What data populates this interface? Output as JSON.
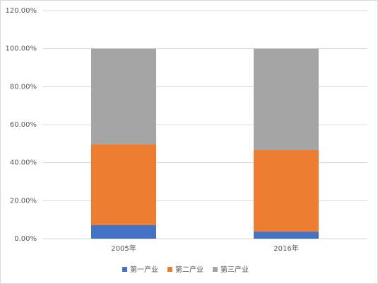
{
  "chart_data": {
    "type": "stacked_bar",
    "categories": [
      "2005年",
      "2016年"
    ],
    "series": [
      {
        "name": "第一产业",
        "color": "#4472c4",
        "values": [
          7.1,
          3.7
        ]
      },
      {
        "name": "第二产业",
        "color": "#ed7d31",
        "values": [
          42.5,
          42.9
        ]
      },
      {
        "name": "第三产业",
        "color": "#a5a5a5",
        "values": [
          50.4,
          53.4
        ]
      }
    ],
    "ylim": [
      0,
      120
    ],
    "yticks": [
      {
        "value": 0,
        "label": "0.00%"
      },
      {
        "value": 20,
        "label": "20.00%"
      },
      {
        "value": 40,
        "label": "40.00%"
      },
      {
        "value": 60,
        "label": "60.00%"
      },
      {
        "value": 80,
        "label": "80.00%"
      },
      {
        "value": 100,
        "label": "100.00%"
      },
      {
        "value": 120,
        "label": "120.00%"
      }
    ],
    "grid": true,
    "legend": "bottom"
  }
}
